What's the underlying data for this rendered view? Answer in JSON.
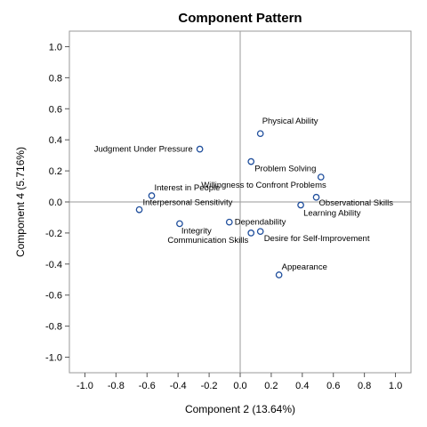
{
  "chart_data": {
    "type": "scatter",
    "title": "Component Pattern",
    "xlabel": "Component 2 (13.64%)",
    "ylabel": "Component 4 (5.716%)",
    "xlim": [
      -1.1,
      1.1
    ],
    "ylim": [
      -1.1,
      1.1
    ],
    "xticks": [
      "-1.0",
      "-0.8",
      "-0.6",
      "-0.4",
      "-0.2",
      "0.0",
      "0.2",
      "0.4",
      "0.6",
      "0.8",
      "1.0"
    ],
    "yticks": [
      "1.0",
      "0.8",
      "0.6",
      "0.4",
      "0.2",
      "0.0",
      "-0.2",
      "-0.4",
      "-0.6",
      "-0.8",
      "-1.0"
    ],
    "reference_lines": {
      "x": 0,
      "y": 0
    },
    "grid": false,
    "point_color": "#1f4e9c",
    "points": [
      {
        "label": "Physical Ability",
        "x": 0.13,
        "y": 0.44
      },
      {
        "label": "Judgment Under Pressure",
        "x": -0.26,
        "y": 0.34
      },
      {
        "label": "Problem Solving",
        "x": 0.07,
        "y": 0.26
      },
      {
        "label": "Willingness to Confront Problems",
        "x": 0.52,
        "y": 0.16
      },
      {
        "label": "Interest in People",
        "x": -0.57,
        "y": 0.04
      },
      {
        "label": "Observational Skills",
        "x": 0.49,
        "y": 0.03
      },
      {
        "label": "Interpersonal Sensitivity",
        "x": -0.65,
        "y": -0.05
      },
      {
        "label": "Learning Ability",
        "x": 0.39,
        "y": -0.02
      },
      {
        "label": "Dependability",
        "x": -0.07,
        "y": -0.13
      },
      {
        "label": "Integrity",
        "x": -0.39,
        "y": -0.14
      },
      {
        "label": "Communication Skills",
        "x": 0.07,
        "y": -0.2
      },
      {
        "label": "Desire for Self-Improvement",
        "x": 0.13,
        "y": -0.19
      },
      {
        "label": "Appearance",
        "x": 0.25,
        "y": -0.47
      }
    ]
  }
}
